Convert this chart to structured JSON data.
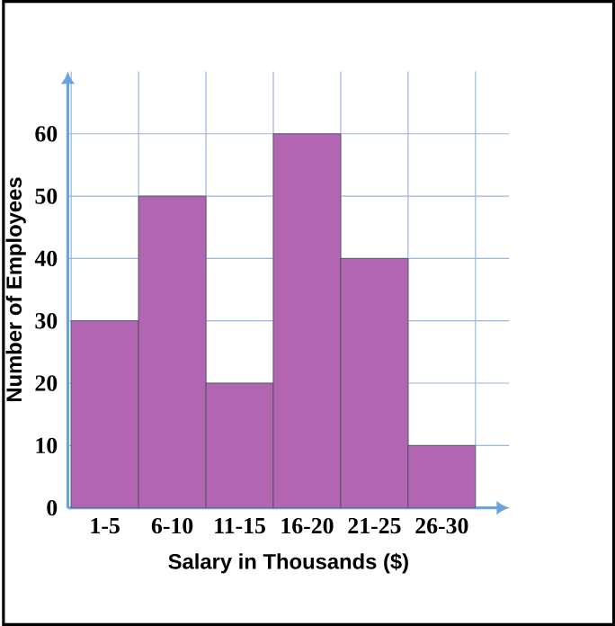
{
  "chart_data": {
    "type": "bar",
    "xlabel": "Salary in Thousands ($)",
    "ylabel": "Number of Employees",
    "categories": [
      "1-5",
      "6-10",
      "11-15",
      "16-20",
      "21-25",
      "26-30"
    ],
    "values": [
      30,
      50,
      20,
      60,
      40,
      10
    ],
    "color": "#b266b2",
    "ylim": [
      0,
      70
    ],
    "yticks": [
      0,
      10,
      20,
      30,
      40,
      50,
      60
    ],
    "grid": true
  }
}
